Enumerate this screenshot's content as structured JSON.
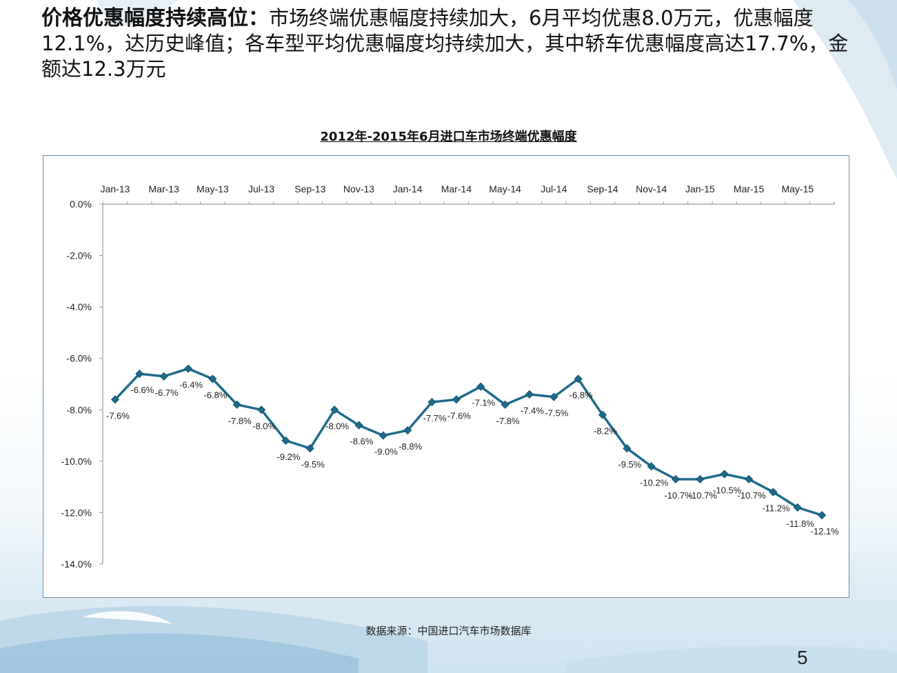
{
  "heading": {
    "lead": "价格优惠幅度持续高位：",
    "body": "市场终端优惠幅度持续加大，6月平均优惠8.0万元，优惠幅度12.1%，达历史峰值；各车型平均优惠幅度均持续加大，其中轿车优惠幅度高达17.7%，金额达12.3万元"
  },
  "chart_data": {
    "type": "line",
    "title": "2012年-2015年6月进口车市场终端优惠幅度",
    "x_axis_position": "top",
    "x": [
      "Jan-13",
      "Feb-13",
      "Mar-13",
      "Apr-13",
      "May-13",
      "Jun-13",
      "Jul-13",
      "Aug-13",
      "Sep-13",
      "Oct-13",
      "Nov-13",
      "Dec-13",
      "Jan-14",
      "Feb-14",
      "Mar-14",
      "Apr-14",
      "May-14",
      "Jun-14",
      "Jul-14",
      "Aug-14",
      "Sep-14",
      "Oct-14",
      "Nov-14",
      "Dec-14",
      "Jan-15",
      "Feb-15",
      "Mar-15",
      "Apr-15",
      "May-15",
      "Jun-15"
    ],
    "tick_labels": [
      "Jan-13",
      "Mar-13",
      "May-13",
      "Jul-13",
      "Sep-13",
      "Nov-13",
      "Jan-14",
      "Mar-14",
      "May-14",
      "Jul-14",
      "Sep-14",
      "Nov-14",
      "Jan-15",
      "Mar-15",
      "May-15"
    ],
    "y_tick_labels": [
      "0.0%",
      "-2.0%",
      "-4.0%",
      "-6.0%",
      "-8.0%",
      "-10.0%",
      "-12.0%",
      "-14.0%"
    ],
    "ylim": [
      -14,
      0
    ],
    "series": [
      {
        "values": [
          -7.6,
          -6.6,
          -6.7,
          -6.4,
          -6.8,
          -7.8,
          -8.0,
          -9.2,
          -9.5,
          -8.0,
          -8.6,
          -9.0,
          -8.8,
          -7.7,
          -7.6,
          -7.1,
          -7.8,
          -7.4,
          -7.5,
          -6.8,
          -8.2,
          -9.5,
          -10.2,
          -10.7,
          -10.7,
          -10.5,
          -10.7,
          -11.2,
          -11.8,
          -12.1
        ],
        "labels": [
          "-7.6%",
          "-6.6%",
          "-6.7%",
          "-6.4%",
          "-6.8%",
          "-7.8%",
          "-8.0%",
          "-9.2%",
          "-9.5%",
          "-8.0%",
          "-8.6%",
          "-9.0%",
          "-8.8%",
          "-7.7%",
          "-7.6%",
          "-7.1%",
          "-7.8%",
          "-7.4%",
          "-7.5%",
          "-6.8%",
          "-8.2%",
          "-9.5%",
          "-10.2%",
          "-10.7%",
          "-10.7%",
          "-10.5%",
          "-10.7%",
          "-11.2%",
          "-11.8%",
          "-12.1%"
        ],
        "color": "#1f6a8a"
      }
    ],
    "grid": false,
    "legend": "none"
  },
  "source_note": "数据来源：中国进口汽车市场数据库",
  "page_number": "5",
  "colors": {
    "line": "#1f6a8a",
    "frame": "#6f8aa4",
    "axis": "#999999"
  }
}
